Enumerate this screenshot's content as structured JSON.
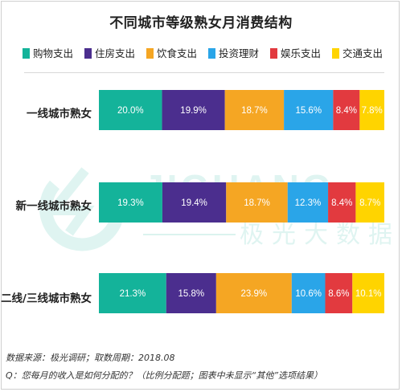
{
  "chart_data": {
    "type": "bar",
    "orientation": "horizontal",
    "stacked": true,
    "title": "不同城市等级熟女月消费结构",
    "categories": [
      "一线城市熟女",
      "新一线城市熟女",
      "二线/三线城市熟女"
    ],
    "series": [
      {
        "name": "购物支出",
        "color": "#14b39a",
        "values": [
          20.0,
          19.3,
          21.3
        ],
        "labels": [
          "20.0%",
          "19.3%",
          "21.3%"
        ]
      },
      {
        "name": "住房支出",
        "color": "#4b2e8e",
        "values": [
          19.9,
          19.4,
          15.8
        ],
        "labels": [
          "19.9%",
          "19.4%",
          "15.8%"
        ]
      },
      {
        "name": "饮食支出",
        "color": "#f5a623",
        "values": [
          18.7,
          18.7,
          23.9
        ],
        "labels": [
          "18.7%",
          "18.7%",
          "23.9%"
        ]
      },
      {
        "name": "投资理财",
        "color": "#2aa5e8",
        "values": [
          15.6,
          12.3,
          10.6
        ],
        "labels": [
          "15.6%",
          "12.3%",
          "10.6%"
        ]
      },
      {
        "name": "娱乐支出",
        "color": "#e23a3f",
        "values": [
          8.4,
          8.4,
          8.6
        ],
        "labels": [
          "8.4%",
          "8.4%",
          "8.6%"
        ]
      },
      {
        "name": "交通支出",
        "color": "#ffd400",
        "values": [
          7.8,
          8.7,
          10.1
        ],
        "labels": [
          "7.8%",
          "8.7%",
          "10.1%"
        ]
      }
    ],
    "legend_position": "top",
    "grid": false
  },
  "watermark": {
    "brand": "JIGUANG",
    "brand_cn": "极光大数据"
  },
  "footer": {
    "source": "数据来源：极光调研；取数周期：2018.08",
    "question": "Q：您每月的收入是如何分配的？（比例分配题；图表中未显示“其他”选项结果）"
  }
}
